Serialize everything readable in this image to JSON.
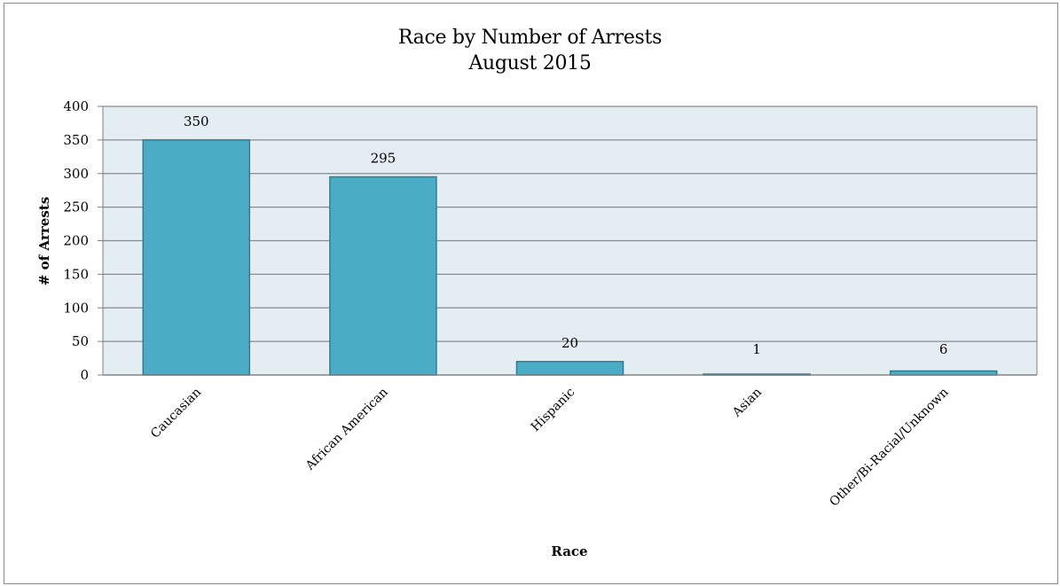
{
  "chart_data": {
    "type": "bar",
    "title": "Race by Number of Arrests",
    "subtitle": "August 2015",
    "xlabel": "Race",
    "ylabel": "# of Arrests",
    "categories": [
      "Caucasian",
      "African American",
      "Hispanic",
      "Asian",
      "Other/Bi-Racial/Unknown"
    ],
    "values": [
      350,
      295,
      20,
      1,
      6
    ],
    "data_labels": [
      "350",
      "295",
      "20",
      "1",
      "6"
    ],
    "ylim": [
      0,
      400
    ],
    "yticks": [
      "0",
      "50",
      "100",
      "150",
      "200",
      "250",
      "300",
      "350",
      "400"
    ],
    "grid": true,
    "legend": "none",
    "colors": {
      "bar_fill": "#4bacc6",
      "bar_stroke": "#2e7d93",
      "plot_background": "#e4edf1",
      "gridline": "#8a8a8a",
      "axis": "#7f7f7f"
    }
  }
}
